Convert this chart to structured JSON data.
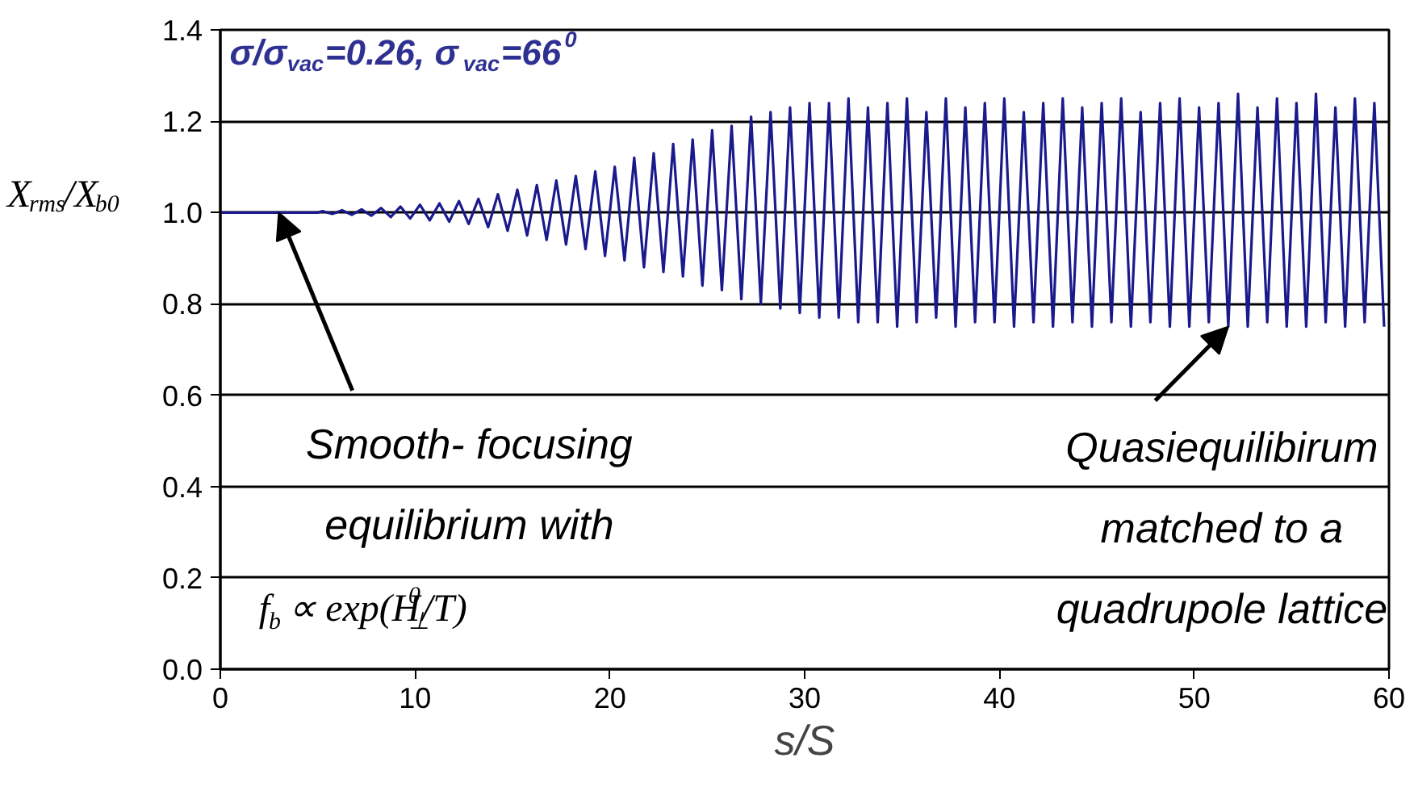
{
  "chart_data": {
    "type": "line",
    "xlabel": "s/S",
    "ylabel": "X$_{rms}$/X$_{b0}$",
    "xlim": [
      0,
      60
    ],
    "ylim": [
      0,
      1.4
    ],
    "xticks": [
      0,
      10,
      20,
      30,
      40,
      50,
      60
    ],
    "yticks": [
      {
        "value": 0,
        "label": "0.0"
      },
      {
        "value": 0.2,
        "label": "0.2"
      },
      {
        "value": 0.4,
        "label": "0.4"
      },
      {
        "value": 0.6,
        "label": "0.6"
      },
      {
        "value": 0.8,
        "label": "0.8"
      },
      {
        "value": 1.0,
        "label": "1.0"
      },
      {
        "value": 1.2,
        "label": "1.2"
      },
      {
        "value": 1.4,
        "label": "1.4"
      }
    ],
    "grid": "y",
    "line_style": "solid",
    "annotations": [
      "σ/σ$_{vac}$=0.26, σ$_{vac}$=66$^{0}$",
      {
        "text": "Smooth- focusing\nequilibrium with",
        "x": 3,
        "y": 1.0
      },
      "f$_{b}$ ∝ exp(H$_{⊥}$$^{0}$/T)",
      {
        "text": "Quasiequilibirum\nmatched to a\nquadrupole lattice",
        "x": 51.75,
        "y": 0.75
      }
    ],
    "series": [
      {
        "color": "#1a1a8c",
        "x": [
          0,
          5,
          5.25,
          5.75,
          6.25,
          6.75,
          7.25,
          7.75,
          8.25,
          8.75,
          9.25,
          9.75,
          10.25,
          10.75,
          11.25,
          11.75,
          12.25,
          12.75,
          13.25,
          13.75,
          14.25,
          14.75,
          15.25,
          15.75,
          16.25,
          16.75,
          17.25,
          17.75,
          18.25,
          18.75,
          19.25,
          19.75,
          20.25,
          20.75,
          21.25,
          21.75,
          22.25,
          22.75,
          23.25,
          23.75,
          24.25,
          24.75,
          25.25,
          25.75,
          26.25,
          26.75,
          27.25,
          27.75,
          28.25,
          28.75,
          29.25,
          29.75,
          30.25,
          30.75,
          31.25,
          31.75,
          32.25,
          32.75,
          33.25,
          33.75,
          34.25,
          34.75,
          35.25,
          35.75,
          36.25,
          36.75,
          37.25,
          37.75,
          38.25,
          38.75,
          39.25,
          39.75,
          40.25,
          40.75,
          41.25,
          41.75,
          42.25,
          42.75,
          43.25,
          43.75,
          44.25,
          44.75,
          45.25,
          45.75,
          46.25,
          46.75,
          47.25,
          47.75,
          48.25,
          48.75,
          49.25,
          49.75,
          50.25,
          50.75,
          51.25,
          51.75,
          52.25,
          52.75,
          53.25,
          53.75,
          54.25,
          54.75,
          55.25,
          55.75,
          56.25,
          56.75,
          57.25,
          57.75,
          58.25,
          58.75,
          59.25,
          59.75
        ],
        "values": [
          1.0,
          1.0,
          1.003,
          0.997,
          1.005,
          0.995,
          1.007,
          0.993,
          1.01,
          0.99,
          1.013,
          0.987,
          1.017,
          0.983,
          1.02,
          0.98,
          1.025,
          0.975,
          1.03,
          0.968,
          1.04,
          0.96,
          1.05,
          0.95,
          1.06,
          0.94,
          1.07,
          0.93,
          1.08,
          0.92,
          1.09,
          0.905,
          1.1,
          0.895,
          1.12,
          0.88,
          1.13,
          0.87,
          1.15,
          0.86,
          1.16,
          0.84,
          1.18,
          0.83,
          1.19,
          0.81,
          1.21,
          0.8,
          1.22,
          0.79,
          1.23,
          0.78,
          1.24,
          0.77,
          1.24,
          0.77,
          1.25,
          0.76,
          1.23,
          0.76,
          1.24,
          0.75,
          1.25,
          0.76,
          1.22,
          0.77,
          1.25,
          0.75,
          1.23,
          0.76,
          1.24,
          0.76,
          1.25,
          0.75,
          1.22,
          0.76,
          1.24,
          0.75,
          1.25,
          0.76,
          1.23,
          0.75,
          1.24,
          0.76,
          1.25,
          0.75,
          1.22,
          0.76,
          1.24,
          0.75,
          1.25,
          0.75,
          1.23,
          0.76,
          1.24,
          0.75,
          1.26,
          0.75,
          1.23,
          0.76,
          1.25,
          0.75,
          1.24,
          0.75,
          1.26,
          0.76,
          1.23,
          0.75,
          1.25,
          0.76,
          1.24,
          0.75
        ]
      }
    ]
  }
}
